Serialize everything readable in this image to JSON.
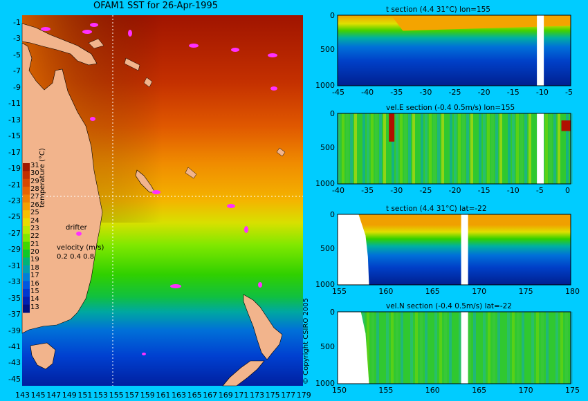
{
  "map": {
    "title": "OFAM1 SST for 26-Apr-1995",
    "lat_ticks": [
      "-1",
      "-3",
      "-5",
      "-7",
      "-9",
      "-11",
      "-13",
      "-15",
      "-17",
      "-19",
      "-21",
      "-23",
      "-25",
      "-27",
      "-29",
      "-31",
      "-33",
      "-35",
      "-37",
      "-39",
      "-41",
      "-43",
      "-45"
    ],
    "lon_ticks": [
      "143",
      "145",
      "147",
      "149",
      "151",
      "153",
      "155",
      "157",
      "159",
      "161",
      "163",
      "165",
      "167",
      "169",
      "171",
      "173",
      "175",
      "177",
      "179"
    ],
    "colorbar": {
      "label": "temperature (°C)",
      "values": [
        "31",
        "30",
        "29",
        "28",
        "27",
        "26",
        "25",
        "24",
        "23",
        "22",
        "21",
        "20",
        "19",
        "18",
        "17",
        "16",
        "15",
        "14",
        "13"
      ],
      "colors": [
        "#a01800",
        "#c23000",
        "#d84800",
        "#e86400",
        "#f08000",
        "#f4a000",
        "#f6c000",
        "#e8dc00",
        "#b8ea00",
        "#80e800",
        "#40d800",
        "#10c828",
        "#00b478",
        "#00a0b0",
        "#0080d8",
        "#0058e0",
        "#0038d0",
        "#0020b0",
        "#001080"
      ]
    },
    "drifter_label": "drifter",
    "velocity_label": "velocity (m/s)",
    "velocity_scale": "0.2 0.4 0.8",
    "copyright": "© Copyright CSIRO 2005"
  },
  "panels": [
    {
      "title": "t section (4.4     31°C) lon=155",
      "y_ticks": [
        "0",
        "500",
        "1000"
      ],
      "x_ticks": [
        "-45",
        "-40",
        "-35",
        "-30",
        "-25",
        "-20",
        "-15",
        "-10",
        "-5"
      ]
    },
    {
      "title": "vel.E section (-0.4     0.5m/s) lon=155",
      "y_ticks": [
        "0",
        "500",
        "1000"
      ],
      "x_ticks": [
        "-40",
        "-35",
        "-30",
        "-25",
        "-20",
        "-15",
        "-10",
        "-5",
        "0"
      ]
    },
    {
      "title": "t section (4.4     31°C) lat=-22",
      "y_ticks": [
        "0",
        "500",
        "1000"
      ],
      "x_ticks": [
        "155",
        "160",
        "165",
        "170",
        "175",
        "180"
      ]
    },
    {
      "title": "vel.N section (-0.4     0.5m/s) lat=-22",
      "y_ticks": [
        "0",
        "500",
        "1000"
      ],
      "x_ticks": [
        "150",
        "155",
        "160",
        "165",
        "170",
        "175"
      ]
    }
  ]
}
